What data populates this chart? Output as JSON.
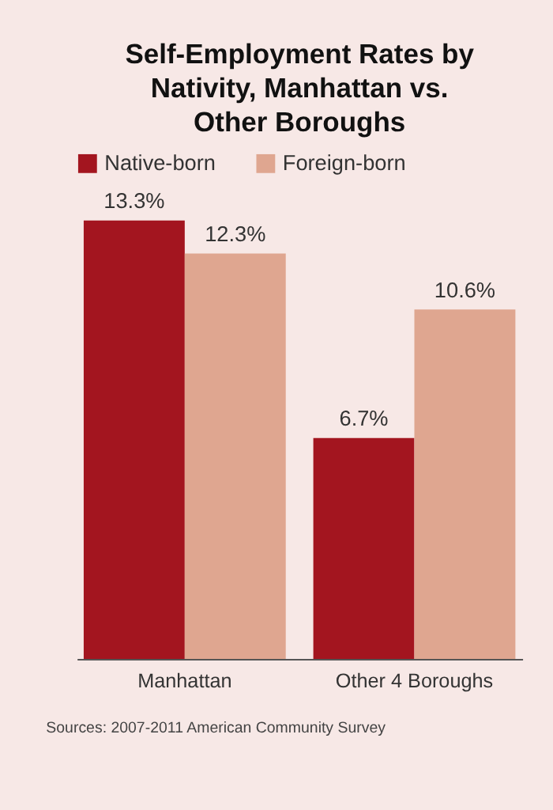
{
  "chart_data": {
    "type": "bar",
    "title": "Self-Employment Rates by Nativity, Manhattan vs. Other Boroughs",
    "categories": [
      "Manhattan",
      "Other 4 Boroughs"
    ],
    "series": [
      {
        "name": "Native-born",
        "color": "#a3151f",
        "values": [
          13.3,
          6.7
        ],
        "value_labels": [
          "13.3%",
          "6.7%"
        ]
      },
      {
        "name": "Foreign-born",
        "color": "#dfa690",
        "values": [
          12.3,
          10.6
        ],
        "value_labels": [
          "12.3%",
          "10.6%"
        ]
      }
    ],
    "legend": "top",
    "grid": false,
    "tick_labels": "x",
    "annotations": [
      "Sources: 2007-2011 American Community Survey"
    ]
  }
}
